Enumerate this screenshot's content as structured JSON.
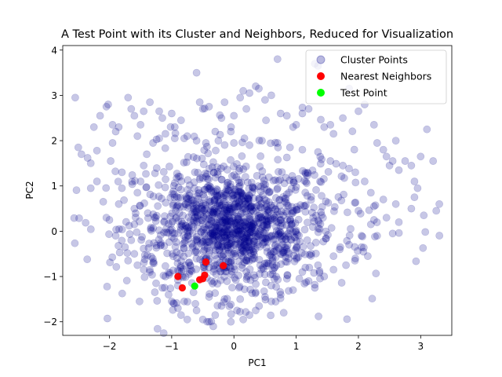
{
  "chart_data": {
    "type": "scatter",
    "title": "A Test Point with its Cluster and Neighbors, Reduced for Visualization",
    "xlabel": "PC1",
    "ylabel": "PC2",
    "xlim": [
      -2.75,
      3.5
    ],
    "ylim": [
      -2.3,
      4.1
    ],
    "xticks": [
      -2,
      -1,
      0,
      1,
      2,
      3
    ],
    "yticks": [
      -2,
      -1,
      0,
      1,
      2,
      3,
      4
    ],
    "xtick_labels": [
      "−2",
      "−1",
      "0",
      "1",
      "2",
      "3"
    ],
    "ytick_labels": [
      "−2",
      "−1",
      "0",
      "1",
      "2",
      "3",
      "4"
    ],
    "grid": false,
    "legend_position": "top-right",
    "series": [
      {
        "name": "Cluster Points",
        "color": "#00008b",
        "alpha": 0.22,
        "marker": "circle",
        "points": [
          [
            -2.55,
            2.95
          ],
          [
            -2.5,
            1.85
          ],
          [
            -2.45,
            1.7
          ],
          [
            -2.3,
            1.5
          ],
          [
            -2.35,
            1.62
          ],
          [
            -2.25,
            2.3
          ],
          [
            -2.2,
            1.78
          ],
          [
            -2.3,
            0.95
          ],
          [
            -2.2,
            1.1
          ],
          [
            -2.1,
            0.65
          ],
          [
            -2.05,
            0.3
          ],
          [
            -2.0,
            0.25
          ],
          [
            -2.05,
            2.75
          ],
          [
            -2.02,
            2.8
          ],
          [
            -2.15,
            2.55
          ],
          [
            -1.95,
            2.35
          ],
          [
            -1.9,
            2.2
          ],
          [
            -1.95,
            1.95
          ],
          [
            -1.98,
            1.55
          ],
          [
            -1.85,
            2.3
          ],
          [
            -1.8,
            1.3
          ],
          [
            -1.8,
            0.95
          ],
          [
            -1.85,
            0.6
          ],
          [
            -1.9,
            -0.1
          ],
          [
            -1.75,
            -0.35
          ],
          [
            -1.7,
            -0.65
          ],
          [
            -1.7,
            2.95
          ],
          [
            -1.65,
            2.7
          ],
          [
            -1.6,
            2.55
          ],
          [
            -1.55,
            2.1
          ],
          [
            -1.5,
            2.35
          ],
          [
            -1.45,
            2.65
          ],
          [
            -1.35,
            2.85
          ],
          [
            -1.2,
            2.65
          ],
          [
            -1.15,
            2.5
          ],
          [
            -1.0,
            2.6
          ],
          [
            -0.95,
            2.3
          ],
          [
            -0.85,
            2.45
          ],
          [
            -0.75,
            2.1
          ],
          [
            -0.6,
            3.5
          ],
          [
            -0.55,
            2.85
          ],
          [
            -0.5,
            2.7
          ],
          [
            -0.4,
            2.75
          ],
          [
            -0.3,
            2.2
          ],
          [
            -0.2,
            2.5
          ],
          [
            -0.15,
            2.85
          ],
          [
            -0.05,
            2.2
          ],
          [
            0.0,
            2.55
          ],
          [
            0.1,
            2.95
          ],
          [
            0.15,
            3.1
          ],
          [
            0.2,
            2.7
          ],
          [
            0.25,
            3.05
          ],
          [
            0.35,
            3.2
          ],
          [
            0.4,
            3.15
          ],
          [
            0.5,
            2.9
          ],
          [
            0.6,
            3.0
          ],
          [
            0.7,
            3.8
          ],
          [
            0.75,
            2.6
          ],
          [
            0.85,
            2.55
          ],
          [
            0.95,
            2.3
          ],
          [
            1.0,
            2.35
          ],
          [
            1.1,
            2.6
          ],
          [
            1.2,
            2.7
          ],
          [
            1.3,
            3.7
          ],
          [
            1.35,
            3.65
          ],
          [
            1.45,
            2.3
          ],
          [
            1.55,
            2.35
          ],
          [
            1.6,
            2.15
          ],
          [
            1.75,
            2.5
          ],
          [
            1.85,
            3.15
          ],
          [
            2.0,
            2.65
          ],
          [
            2.1,
            2.8
          ],
          [
            2.25,
            2.35
          ],
          [
            2.3,
            1.95
          ],
          [
            2.4,
            1.8
          ],
          [
            2.45,
            1.65
          ],
          [
            2.5,
            1.45
          ],
          [
            2.55,
            1.55
          ],
          [
            2.65,
            1.35
          ],
          [
            2.6,
            2.0
          ],
          [
            2.75,
            1.55
          ],
          [
            2.85,
            1.45
          ],
          [
            2.9,
            1.1
          ],
          [
            2.95,
            0.95
          ],
          [
            3.0,
            1.65
          ],
          [
            3.1,
            2.25
          ],
          [
            3.2,
            1.55
          ],
          [
            3.3,
            0.6
          ],
          [
            3.25,
            0.45
          ],
          [
            3.05,
            0.35
          ],
          [
            2.9,
            0.75
          ],
          [
            2.85,
            0.5
          ],
          [
            2.65,
            0.2
          ],
          [
            2.6,
            0.6
          ],
          [
            2.55,
            -0.05
          ],
          [
            2.45,
            0.3
          ],
          [
            2.4,
            0.7
          ],
          [
            2.3,
            -0.1
          ],
          [
            2.25,
            0.25
          ],
          [
            2.15,
            -0.55
          ],
          [
            2.05,
            -0.35
          ],
          [
            2.0,
            0.45
          ],
          [
            1.95,
            -0.6
          ],
          [
            1.8,
            -0.75
          ],
          [
            1.7,
            -0.4
          ],
          [
            1.6,
            -0.85
          ],
          [
            1.45,
            -1.0
          ],
          [
            1.3,
            -1.25
          ],
          [
            1.2,
            -1.1
          ],
          [
            1.05,
            -1.05
          ],
          [
            0.95,
            -1.3
          ],
          [
            0.8,
            -1.8
          ],
          [
            0.75,
            -1.4
          ],
          [
            0.6,
            -1.55
          ],
          [
            0.5,
            -1.45
          ],
          [
            0.35,
            -1.75
          ],
          [
            0.25,
            -1.85
          ],
          [
            0.15,
            -1.95
          ],
          [
            0.05,
            -1.75
          ],
          [
            -0.05,
            -2.0
          ],
          [
            -0.2,
            -1.65
          ],
          [
            -0.3,
            -1.85
          ],
          [
            -0.4,
            -2.0
          ],
          [
            -0.5,
            -1.95
          ],
          [
            -0.6,
            -1.75
          ],
          [
            -0.75,
            -1.95
          ],
          [
            -0.8,
            -1.55
          ],
          [
            -0.85,
            -1.85
          ],
          [
            -0.9,
            -1.7
          ],
          [
            -1.0,
            -1.55
          ],
          [
            -1.05,
            -1.4
          ],
          [
            -1.15,
            -1.25
          ],
          [
            -1.25,
            -1.15
          ],
          [
            -1.35,
            -0.9
          ],
          [
            -1.45,
            -0.85
          ],
          [
            -1.55,
            -0.75
          ],
          [
            -1.6,
            -0.5
          ],
          [
            -1.65,
            -0.2
          ],
          [
            -1.6,
            0.15
          ],
          [
            -1.6,
            0.5
          ],
          [
            -1.55,
            0.85
          ],
          [
            -1.5,
            1.1
          ],
          [
            -1.45,
            1.45
          ],
          [
            -1.4,
            1.7
          ],
          [
            -1.3,
            1.95
          ],
          [
            -1.2,
            2.05
          ],
          [
            -1.1,
            2.15
          ],
          [
            -0.95,
            2.05
          ],
          [
            -0.8,
            2.05
          ],
          [
            -0.6,
            2.0
          ],
          [
            -0.45,
            1.95
          ],
          [
            -0.25,
            2.0
          ],
          [
            0.0,
            1.95
          ],
          [
            0.25,
            1.9
          ],
          [
            0.45,
            2.0
          ],
          [
            0.7,
            1.95
          ],
          [
            0.9,
            1.85
          ],
          [
            1.1,
            1.8
          ],
          [
            1.35,
            1.75
          ],
          [
            1.55,
            1.55
          ],
          [
            1.75,
            1.45
          ],
          [
            1.95,
            1.3
          ],
          [
            2.1,
            1.1
          ],
          [
            2.2,
            0.85
          ],
          [
            2.25,
            0.55
          ],
          [
            2.2,
            0.15
          ],
          [
            2.05,
            -0.1
          ],
          [
            1.85,
            -0.3
          ],
          [
            1.6,
            -0.55
          ],
          [
            1.35,
            -0.75
          ],
          [
            1.1,
            -0.9
          ],
          [
            0.85,
            -1.05
          ],
          [
            0.6,
            -1.2
          ],
          [
            0.35,
            -1.35
          ],
          [
            0.1,
            -1.5
          ],
          [
            -0.15,
            -1.5
          ],
          [
            -0.4,
            -1.45
          ],
          [
            -0.65,
            -1.35
          ],
          [
            -0.9,
            -1.2
          ],
          [
            -1.1,
            -1.0
          ],
          [
            -1.3,
            -0.7
          ]
        ],
        "core_ellipses": [
          {
            "cx": -0.1,
            "cy": 0.1,
            "rx": 1.55,
            "ry": 1.45,
            "count": 520
          },
          {
            "cx": 0.0,
            "cy": 0.0,
            "rx": 1.05,
            "ry": 0.95,
            "count": 520
          },
          {
            "cx": 0.2,
            "cy": 0.25,
            "rx": 1.9,
            "ry": 1.55,
            "count": 300
          }
        ]
      },
      {
        "name": "Nearest Neighbors",
        "color": "#ff0000",
        "alpha": 0.95,
        "marker": "circle",
        "points": [
          [
            -0.9,
            -1.0
          ],
          [
            -0.83,
            -1.25
          ],
          [
            -0.5,
            -1.05
          ],
          [
            -0.55,
            -1.07
          ],
          [
            -0.47,
            -0.97
          ],
          [
            -0.45,
            -0.68
          ],
          [
            -0.17,
            -0.76
          ]
        ]
      },
      {
        "name": "Test Point",
        "color": "#00ff00",
        "alpha": 1,
        "marker": "circle",
        "points": [
          [
            -0.63,
            -1.21
          ]
        ]
      }
    ]
  }
}
